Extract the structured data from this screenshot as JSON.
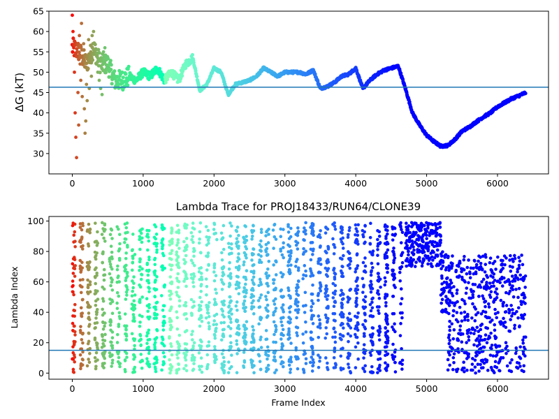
{
  "chart_data": [
    {
      "type": "scatter",
      "title": "",
      "xlabel": "",
      "ylabel": "ΔG (kT)",
      "xlim": [
        -330,
        6720
      ],
      "ylim": [
        25,
        65
      ],
      "xticks": [
        0,
        1000,
        2000,
        3000,
        4000,
        5000,
        6000
      ],
      "yticks": [
        30,
        35,
        40,
        45,
        50,
        55,
        60,
        65
      ],
      "hline": 46.3,
      "hline_color": "#1f77b4",
      "colormap": "rainbow",
      "frame_range": [
        0,
        6400
      ],
      "trend": [
        [
          0,
          56
        ],
        [
          100,
          55
        ],
        [
          200,
          52
        ],
        [
          300,
          56
        ],
        [
          400,
          52
        ],
        [
          500,
          52
        ],
        [
          600,
          48
        ],
        [
          700,
          48
        ],
        [
          800,
          49
        ],
        [
          900,
          48
        ],
        [
          1000,
          50
        ],
        [
          1100,
          49
        ],
        [
          1200,
          51
        ],
        [
          1300,
          48
        ],
        [
          1400,
          50
        ],
        [
          1500,
          48
        ],
        [
          1600,
          52
        ],
        [
          1700,
          53.5
        ],
        [
          1800,
          45.5
        ],
        [
          1900,
          47
        ],
        [
          2000,
          51
        ],
        [
          2100,
          50
        ],
        [
          2200,
          44.5
        ],
        [
          2300,
          47
        ],
        [
          2400,
          47.5
        ],
        [
          2500,
          48
        ],
        [
          2600,
          49
        ],
        [
          2700,
          51
        ],
        [
          2800,
          50
        ],
        [
          2900,
          49
        ],
        [
          3000,
          50
        ],
        [
          3100,
          50
        ],
        [
          3200,
          50
        ],
        [
          3300,
          49.5
        ],
        [
          3400,
          50.5
        ],
        [
          3500,
          46
        ],
        [
          3600,
          46.5
        ],
        [
          3700,
          47.5
        ],
        [
          3800,
          49
        ],
        [
          3900,
          49.5
        ],
        [
          4000,
          51
        ],
        [
          4100,
          46
        ],
        [
          4200,
          48
        ],
        [
          4300,
          49.5
        ],
        [
          4400,
          50.5
        ],
        [
          4500,
          51
        ],
        [
          4600,
          51.5
        ],
        [
          4700,
          46
        ],
        [
          4800,
          40
        ],
        [
          4900,
          37
        ],
        [
          5000,
          34.5
        ],
        [
          5100,
          33
        ],
        [
          5200,
          31.8
        ],
        [
          5300,
          32
        ],
        [
          5400,
          33.5
        ],
        [
          5500,
          35.5
        ],
        [
          5600,
          36.5
        ],
        [
          5700,
          37.8
        ],
        [
          5800,
          39
        ],
        [
          5900,
          40
        ],
        [
          6000,
          41.5
        ],
        [
          6100,
          42.5
        ],
        [
          6200,
          43.5
        ],
        [
          6300,
          44.2
        ],
        [
          6400,
          45
        ]
      ],
      "early_scatter": [
        [
          0,
          64
        ],
        [
          10,
          60
        ],
        [
          20,
          56
        ],
        [
          30,
          50
        ],
        [
          40,
          40
        ],
        [
          50,
          34
        ],
        [
          60,
          29
        ],
        [
          70,
          55
        ],
        [
          80,
          45
        ],
        [
          90,
          37
        ],
        [
          100,
          59
        ],
        [
          110,
          52
        ],
        [
          120,
          48
        ],
        [
          130,
          62
        ],
        [
          140,
          44
        ],
        [
          150,
          54
        ],
        [
          160,
          57
        ],
        [
          170,
          41
        ],
        [
          180,
          35
        ],
        [
          190,
          38
        ],
        [
          200,
          47
        ],
        [
          210,
          43
        ],
        [
          220,
          51
        ],
        [
          230,
          58
        ],
        [
          240,
          46
        ],
        [
          250,
          53
        ],
        [
          260,
          55
        ],
        [
          270,
          49
        ],
        [
          280,
          59
        ],
        [
          290,
          57
        ],
        [
          300,
          60
        ],
        [
          320,
          55
        ],
        [
          340,
          52
        ],
        [
          360,
          50
        ],
        [
          380,
          48
        ],
        [
          400,
          46
        ],
        [
          420,
          44.5
        ],
        [
          440,
          55
        ],
        [
          460,
          56
        ],
        [
          480,
          53
        ],
        [
          500,
          51
        ]
      ]
    },
    {
      "type": "scatter",
      "title": "Lambda Trace for PROJ18433/RUN64/CLONE39",
      "xlabel": "Frame Index",
      "ylabel": "Lambda Index",
      "xlim": [
        -330,
        6720
      ],
      "ylim": [
        -4,
        103
      ],
      "xticks": [
        0,
        1000,
        2000,
        3000,
        4000,
        5000,
        6000
      ],
      "yticks": [
        0,
        20,
        40,
        60,
        80,
        100
      ],
      "hline": 15,
      "hline_color": "#1f77b4",
      "colormap": "rainbow",
      "frame_range": [
        0,
        6400
      ],
      "segments": [
        [
          0,
          4700,
          0,
          99
        ],
        [
          4700,
          5200,
          70,
          99
        ],
        [
          5200,
          5300,
          40,
          80
        ],
        [
          5300,
          6400,
          0,
          78
        ]
      ]
    }
  ]
}
